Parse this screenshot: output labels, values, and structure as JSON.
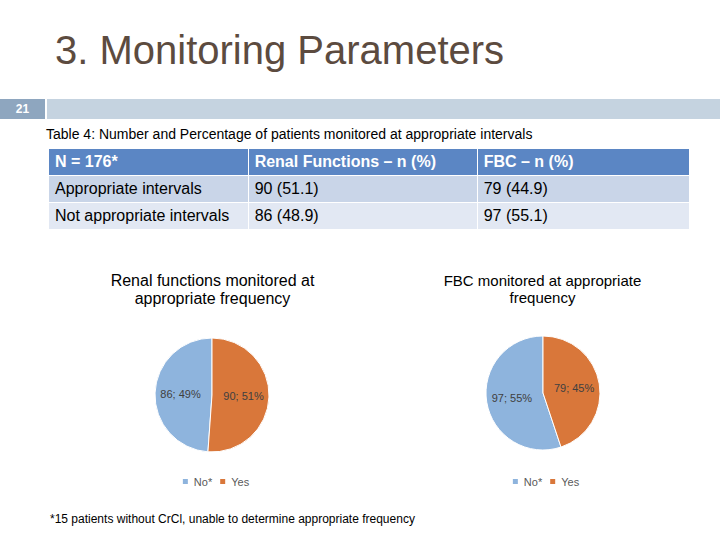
{
  "slide": {
    "title": "3. Monitoring Parameters",
    "page_number": 21,
    "table_caption": "Table 4: Number and Percentage of patients monitored at appropriate intervals",
    "table": {
      "header": [
        "N = 176*",
        "Renal Functions – n (%)",
        "FBC – n (%)"
      ],
      "rows": [
        [
          "Appropriate intervals",
          "90 (51.1)",
          "79 (44.9)"
        ],
        [
          "Not appropriate intervals",
          "86 (48.9)",
          "97 (55.1)"
        ]
      ]
    },
    "footnote": "*15 patients without CrCl, unable to determine appropriate frequency"
  },
  "chart_data": [
    {
      "type": "pie",
      "title": "Renal functions monitored at appropriate frequency",
      "categories": [
        "No*",
        "Yes"
      ],
      "values": [
        86,
        90
      ],
      "value_labels": [
        "86; 49%",
        "90; 51%"
      ],
      "colors": [
        "#8eb4dd",
        "#d9773a"
      ],
      "data_labels": true,
      "legend": "bottom"
    },
    {
      "type": "pie",
      "title": "FBC monitored at appropriate frequency",
      "categories": [
        "No*",
        "Yes"
      ],
      "values": [
        97,
        79
      ],
      "value_labels": [
        "97; 55%",
        "79; 45%"
      ],
      "colors": [
        "#8eb4dd",
        "#d9773a"
      ],
      "data_labels": true,
      "legend": "bottom"
    }
  ]
}
